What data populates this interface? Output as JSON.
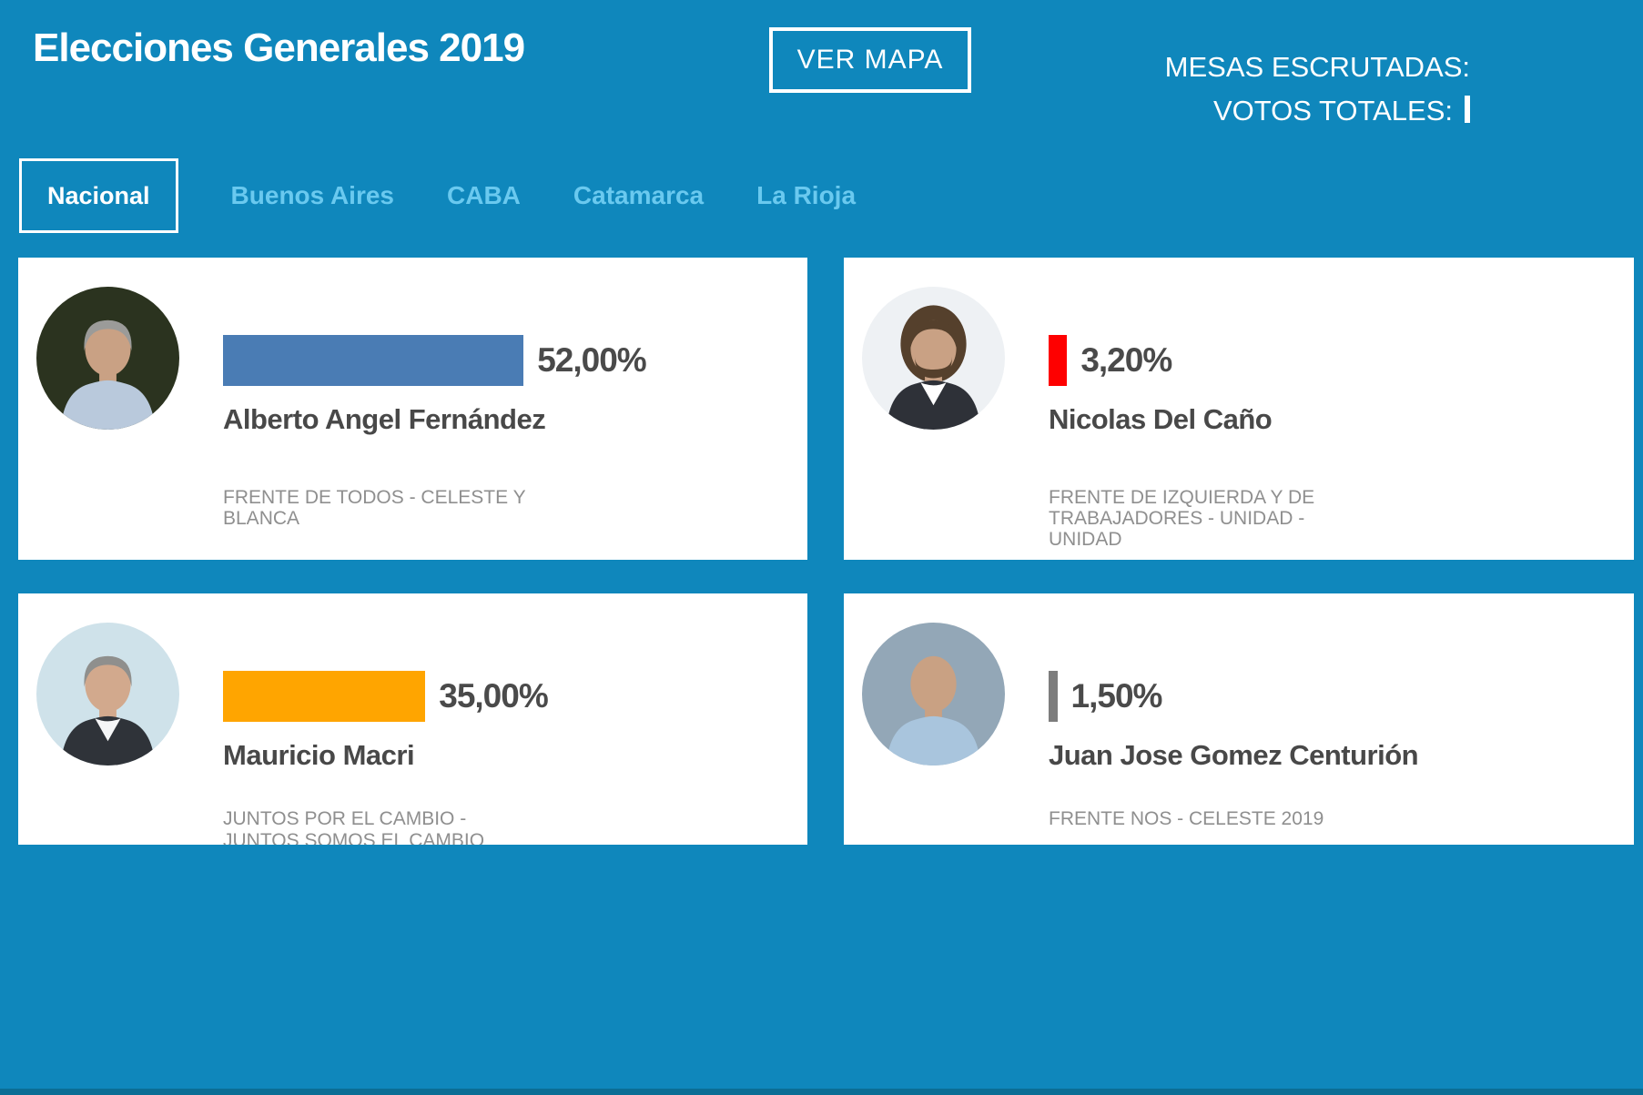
{
  "header": {
    "title": "Elecciones Generales 2019",
    "ver_mapa": "VER MAPA",
    "mesas_escrutadas_label": "MESAS ESCRUTADAS:",
    "votos_totales_label": "VOTOS TOTALES:"
  },
  "tabs": [
    {
      "label": "Nacional",
      "active": true
    },
    {
      "label": "Buenos Aires",
      "active": false
    },
    {
      "label": "CABA",
      "active": false
    },
    {
      "label": "Catamarca",
      "active": false
    },
    {
      "label": "La Rioja",
      "active": false
    }
  ],
  "colors": {
    "background": "#0f87bc",
    "background_edge": "#0b6e95",
    "card": "#ffffff",
    "tab_inactive": "#6ac9ef",
    "text_primary": "#4a4a4a",
    "text_party": "#8f8f8f"
  },
  "candidates": [
    {
      "name": "Alberto Angel Fernández",
      "percent_label": "52,00%",
      "percent": 52.0,
      "party": "FRENTE DE TODOS - CELESTE Y\nBLANCA",
      "bar_color": "#4a7cb4",
      "photo": {
        "background": "#2b331f",
        "skin": "#c9a184",
        "hair": "#9b9b99",
        "shirt": "#b9c9dc",
        "jacket": "",
        "style": "short"
      }
    },
    {
      "name": "Nicolas Del Caño",
      "percent_label": "3,20%",
      "percent": 3.2,
      "party": "FRENTE DE IZQUIERDA Y DE\nTRABAJADORES - UNIDAD -\nUNIDAD",
      "bar_color": "#fe0000",
      "photo": {
        "background": "#eef1f4",
        "skin": "#c9a184",
        "hair": "#55402c",
        "shirt": "#ffffff",
        "jacket": "#2e3138",
        "style": "long-beard"
      }
    },
    {
      "name": "Mauricio Macri",
      "percent_label": "35,00%",
      "percent": 35.0,
      "party": "JUNTOS POR EL CAMBIO -\nJUNTOS SOMOS EL CAMBIO",
      "bar_color": "#ffa500",
      "photo": {
        "background": "#cfe2ea",
        "skin": "#d2a98d",
        "hair": "#8f8f8d",
        "shirt": "#f5f6f7",
        "jacket": "#2f3339",
        "style": "short"
      }
    },
    {
      "name": "Juan Jose Gomez Centurión",
      "percent_label": "1,50%",
      "percent": 1.5,
      "party": "FRENTE NOS - CELESTE 2019",
      "bar_color": "#7d7d7d",
      "photo": {
        "background": "#93a7b7",
        "skin": "#c9a183",
        "hair": "",
        "shirt": "#a9c5dd",
        "jacket": "",
        "style": "bald"
      }
    }
  ]
}
